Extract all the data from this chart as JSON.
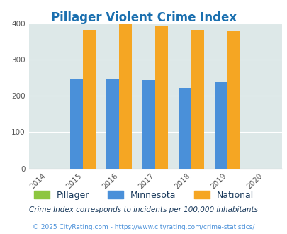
{
  "title": "Pillager Violent Crime Index",
  "years": [
    2014,
    2015,
    2016,
    2017,
    2018,
    2019,
    2020
  ],
  "bar_years": [
    2015,
    2016,
    2017,
    2018,
    2019
  ],
  "pillager": [
    0,
    0,
    0,
    0,
    0
  ],
  "minnesota": [
    246,
    246,
    243,
    222,
    240
  ],
  "national": [
    383,
    398,
    394,
    381,
    379
  ],
  "pillager_color": "#8dc63f",
  "minnesota_color": "#4a90d9",
  "national_color": "#f5a623",
  "background_color": "#dde8e8",
  "fig_background": "#ffffff",
  "ylim": [
    0,
    400
  ],
  "yticks": [
    0,
    100,
    200,
    300,
    400
  ],
  "xlim": [
    2013.5,
    2020.5
  ],
  "legend_labels": [
    "Pillager",
    "Minnesota",
    "National"
  ],
  "footnote1": "Crime Index corresponds to incidents per 100,000 inhabitants",
  "footnote2": "© 2025 CityRating.com - https://www.cityrating.com/crime-statistics/",
  "title_color": "#1a6faf",
  "legend_label_color": "#1a3a5c",
  "footnote1_color": "#1a3a5c",
  "footnote2_color": "#4a90d9",
  "tick_color": "#555555",
  "grid_color": "#ffffff",
  "bar_width": 0.35
}
